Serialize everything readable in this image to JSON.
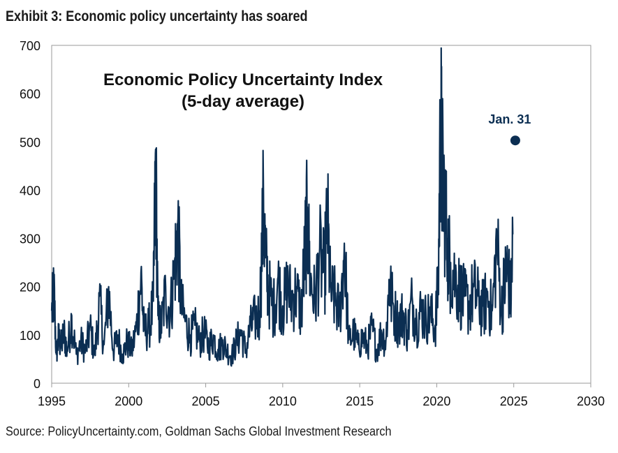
{
  "exhibit": {
    "title": "Exhibit 3: Economic policy uncertainty has soared",
    "source": "Source: PolicyUncertainty.com, Goldman Sachs Global Investment Research"
  },
  "colors": {
    "series": "#0b2e52",
    "axis": "#9a9a9a",
    "text": "#111111"
  },
  "chart_data": {
    "type": "line",
    "title": "Economic Policy Uncertainty Index",
    "subtitle": "(5-day average)",
    "xlabel": "",
    "ylabel": "",
    "xlim": [
      1995,
      2030
    ],
    "ylim": [
      0,
      700
    ],
    "xticks": [
      1995,
      2000,
      2005,
      2010,
      2015,
      2020,
      2025,
      2030
    ],
    "yticks": [
      0,
      100,
      200,
      300,
      400,
      500,
      600,
      700
    ],
    "grid": false,
    "series": [
      {
        "name": "Economic Policy Uncertainty Index (5-day average)",
        "x": [
          1995.0,
          1995.15,
          1995.3,
          1995.45,
          1995.6,
          1995.8,
          1996.0,
          1996.3,
          1996.6,
          1996.9,
          1997.2,
          1997.5,
          1997.8,
          1998.1,
          1998.4,
          1998.7,
          1999.0,
          1999.3,
          1999.6,
          1999.9,
          2000.2,
          2000.5,
          2000.8,
          2001.0,
          2001.3,
          2001.6,
          2001.75,
          2001.9,
          2002.1,
          2002.4,
          2002.7,
          2003.0,
          2003.2,
          2003.4,
          2003.7,
          2004.0,
          2004.3,
          2004.6,
          2004.9,
          2005.2,
          2005.5,
          2005.8,
          2006.1,
          2006.4,
          2006.7,
          2007.0,
          2007.3,
          2007.6,
          2007.9,
          2008.2,
          2008.5,
          2008.75,
          2008.9,
          2009.1,
          2009.4,
          2009.7,
          2010.0,
          2010.3,
          2010.6,
          2010.9,
          2011.2,
          2011.45,
          2011.6,
          2011.8,
          2012.1,
          2012.4,
          2012.7,
          2012.9,
          2013.1,
          2013.4,
          2013.7,
          2014.0,
          2014.3,
          2014.6,
          2014.9,
          2015.2,
          2015.5,
          2015.8,
          2016.1,
          2016.4,
          2016.7,
          2016.9,
          2017.2,
          2017.5,
          2017.8,
          2018.1,
          2018.4,
          2018.7,
          2019.0,
          2019.3,
          2019.6,
          2019.9,
          2020.1,
          2020.25,
          2020.35,
          2020.5,
          2020.7,
          2020.9,
          2021.2,
          2021.5,
          2021.8,
          2022.1,
          2022.4,
          2022.7,
          2023.0,
          2023.3,
          2023.6,
          2023.9,
          2024.2,
          2024.4,
          2024.6,
          2024.8,
          2024.95
        ],
        "y": [
          150,
          200,
          60,
          100,
          80,
          110,
          70,
          140,
          60,
          90,
          70,
          120,
          60,
          180,
          80,
          200,
          70,
          100,
          60,
          90,
          70,
          120,
          230,
          110,
          120,
          170,
          485,
          140,
          120,
          200,
          150,
          260,
          340,
          170,
          130,
          100,
          120,
          90,
          110,
          80,
          100,
          70,
          90,
          70,
          60,
          90,
          110,
          70,
          120,
          140,
          150,
          390,
          260,
          200,
          160,
          220,
          160,
          210,
          180,
          200,
          150,
          290,
          365,
          220,
          180,
          280,
          230,
          360,
          200,
          180,
          150,
          290,
          90,
          110,
          80,
          100,
          80,
          120,
          70,
          110,
          90,
          215,
          160,
          130,
          150,
          110,
          180,
          130,
          160,
          140,
          150,
          120,
          220,
          585,
          460,
          400,
          300,
          250,
          230,
          200,
          180,
          170,
          200,
          180,
          160,
          190,
          150,
          310,
          160,
          220,
          250,
          180,
          310
        ]
      }
    ],
    "points": [
      {
        "label": "Jan. 31",
        "x": 2025.1,
        "y": 503
      }
    ]
  }
}
